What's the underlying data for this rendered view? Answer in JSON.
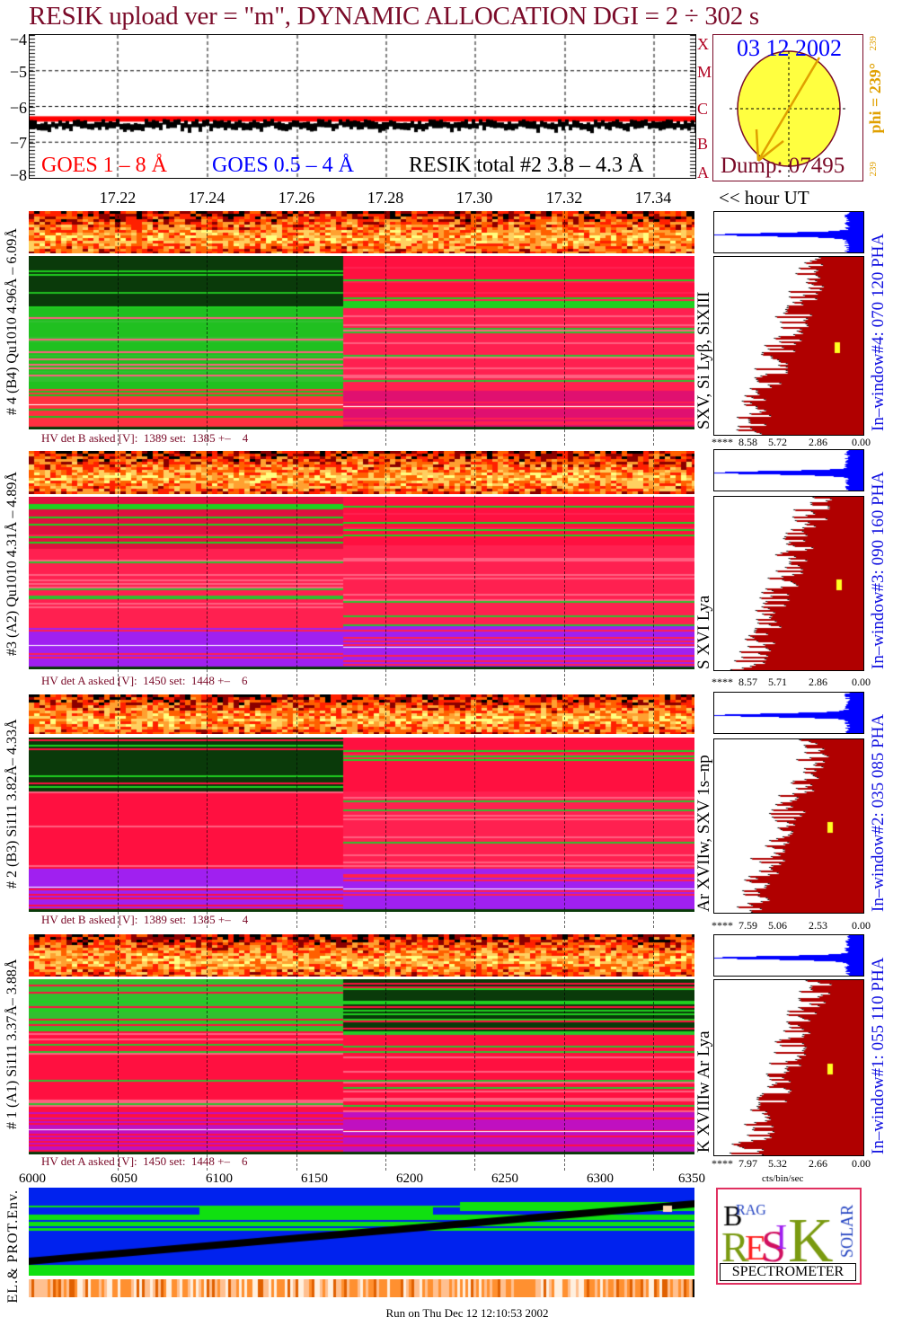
{
  "title": "RESIK upload ver = \"m\", DYNAMIC ALLOCATION  DGI =   2 ÷ 302 s",
  "colors": {
    "title": "#7a0a28",
    "goes_long": "#ff0000",
    "goes_short": "#0000ff",
    "resik": "#000000",
    "sun": "#ffff40",
    "pha": "#b00000",
    "pha_top": "#0000ff",
    "window_label": "#1010e0",
    "phi": "#e0a000"
  },
  "lightcurve": {
    "y_ticks": [
      "−4",
      "−5",
      "−6",
      "−7",
      "−8"
    ],
    "legend": {
      "goes_long": "GOES 1 – 8 Å",
      "goes_short": "GOES 0.5 – 4 Å",
      "resik": "RESIK total #2  3.8 – 4.3 Å"
    },
    "goes_class_letters": [
      "X",
      "M",
      "C",
      "B",
      "A"
    ]
  },
  "time_axis": {
    "ticks": [
      "17.22",
      "17.24",
      "17.26",
      "17.28",
      "17.30",
      "17.32",
      "17.34"
    ],
    "unit_label": "<< hour UT"
  },
  "sun": {
    "date": "03 12 2002",
    "dump": "Dump: 07495",
    "phi": "phi = 239°",
    "phi_small_top": "239",
    "phi_small_bottom": "239"
  },
  "panels": [
    {
      "label": "# 4 (B4) Qu1010 4.96Å – 6.09Å",
      "lines": "SXV, Si Lyβ, SiXIII",
      "hv": "HV det B asked [V]:  1389 set:  1385 +–    4",
      "window": "In–window#4:  070 120 PHA",
      "ticks": [
        "****",
        "8.58",
        "5.72",
        "2.86",
        "0.00"
      ]
    },
    {
      "label": "#3 (A2) Qu1010  4.31Å – 4.89Å",
      "lines": "S XVI Lya",
      "hv": "HV det A asked [V]:  1450 set:  1448 +–    6",
      "window": "In–window#3:  090 160 PHA",
      "ticks": [
        "****",
        "8.57",
        "5.71",
        "2.86",
        "0.00"
      ]
    },
    {
      "label": "# 2 (B3) Si111  3.82Å– 4.33Å",
      "lines": "Ar XVIIw,  SXV 1s–np",
      "hv": "HV det B asked [V]:  1389 set:  1385 +–    4",
      "window": "In–window#2:  035 085 PHA",
      "ticks": [
        "****",
        "7.59",
        "5.06",
        "2.53",
        "0.00"
      ]
    },
    {
      "label": "# 1 (A1) Si111  3.37Å– 3.88Å",
      "lines": "K XVIIIw  Ar Lya",
      "hv": "HV det A asked [V]:  1450 set:  1448 +–    6",
      "window": "In–window#1:  055 110 PHA",
      "ticks": [
        "****",
        "7.97",
        "5.32",
        "2.66",
        "0.00"
      ]
    }
  ],
  "pha_unit": "cts/bin/sec",
  "bottom_axis": {
    "ticks": [
      "6000",
      "6050",
      "6100",
      "6150",
      "6200",
      "6250",
      "6300",
      "6350"
    ]
  },
  "env_label": "EL.& PROT.Env.",
  "logo": {
    "letters": "BRAGG RESIK SOLAR",
    "caption": "SPECTROMETER"
  },
  "footer": "Run on Thu Dec 12 12:10:53 2002",
  "chart_data": {
    "type": "line",
    "title": "RESIK upload ver = \"m\", DYNAMIC ALLOCATION  DGI =   2 ÷ 302 s",
    "xlabel": "<< hour UT",
    "ylabel": "",
    "xlim": [
      17.2,
      17.355
    ],
    "ylim": [
      -8,
      -4
    ],
    "grid": true,
    "legend_position": "bottom",
    "x": [
      17.2,
      17.22,
      17.24,
      17.26,
      17.28,
      17.3,
      17.32,
      17.34,
      17.355
    ],
    "series": [
      {
        "name": "GOES 1 – 8 Å",
        "values": [
          -6.35,
          -6.35,
          -6.35,
          -6.35,
          -6.35,
          -6.35,
          -6.35,
          -6.35,
          -6.35
        ]
      },
      {
        "name": "RESIK total #2  3.8 – 4.3 Å",
        "values": [
          -6.5,
          -6.5,
          -6.55,
          -6.5,
          -6.55,
          -6.5,
          -6.5,
          -6.45,
          -6.5
        ]
      }
    ]
  }
}
